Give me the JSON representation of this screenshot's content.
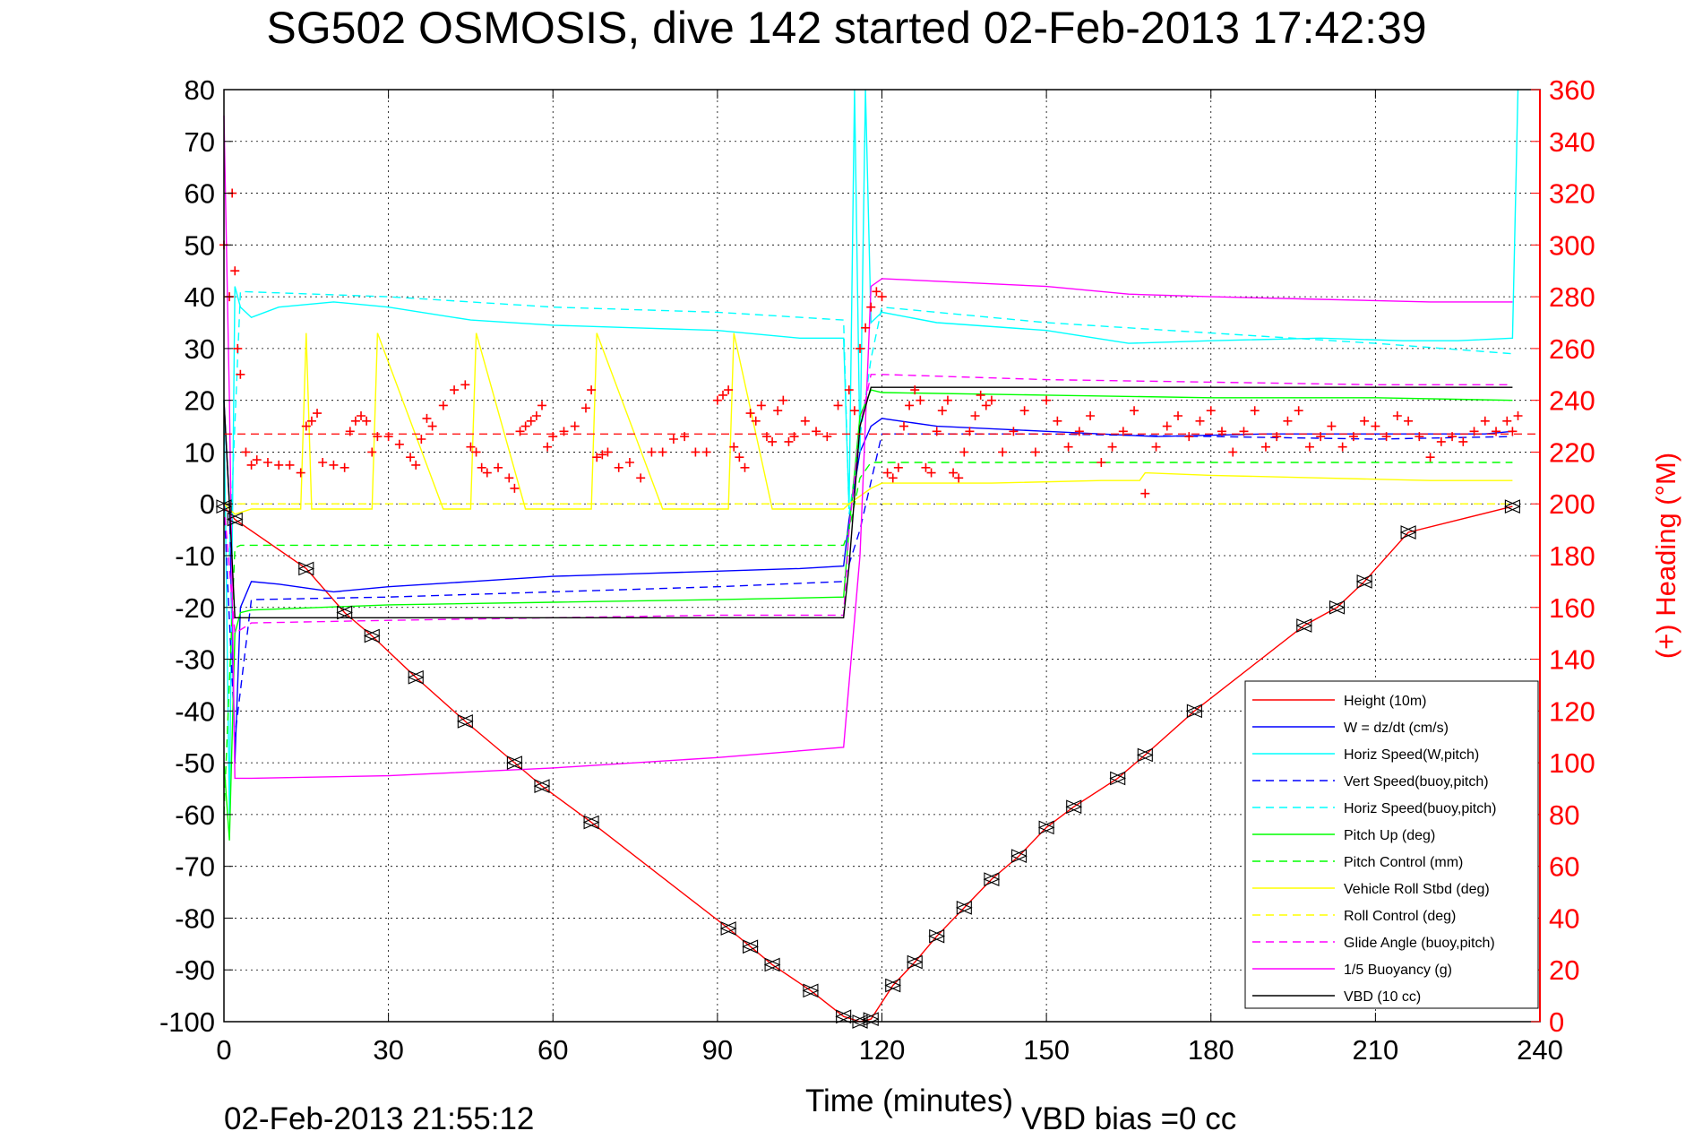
{
  "chart_data": {
    "type": "line",
    "title": "SG502 OSMOSIS, dive 142 started 02-Feb-2013 17:42:39",
    "xlabel": "Time (minutes)",
    "ylabel_right": "(+) Heading (°M)",
    "footer_left": "02-Feb-2013 21:55:12",
    "footer_right": "VBD bias =0 cc",
    "xlim": [
      0,
      240
    ],
    "ylim": [
      -100,
      80
    ],
    "y2lim": [
      0,
      360
    ],
    "x_ticks": [
      "0",
      "30",
      "60",
      "90",
      "120",
      "150",
      "180",
      "210",
      "240"
    ],
    "y_ticks": [
      "80",
      "70",
      "60",
      "50",
      "40",
      "30",
      "20",
      "10",
      "0",
      "-10",
      "-20",
      "-30",
      "-40",
      "-50",
      "-60",
      "-70",
      "-80",
      "-90",
      "-100"
    ],
    "y2_ticks": [
      "360",
      "340",
      "320",
      "300",
      "280",
      "260",
      "240",
      "220",
      "200",
      "180",
      "160",
      "140",
      "120",
      "100",
      "80",
      "60",
      "40",
      "20",
      "0"
    ],
    "grid": true,
    "legend_position": "bottom-right",
    "series": [
      {
        "name": "Height (10m)",
        "color": "#ff0000",
        "style": "solid",
        "x": [
          0,
          2,
          15,
          22,
          27,
          35,
          44,
          53,
          58,
          67,
          92,
          96,
          100,
          107,
          113,
          116,
          118,
          122,
          126,
          130,
          135,
          140,
          145,
          150,
          155,
          163,
          168,
          177,
          197,
          203,
          208,
          216,
          235
        ],
        "y": [
          -0.5,
          -3,
          -12.5,
          -21,
          -25.5,
          -33.5,
          -42,
          -50,
          -54.5,
          -61.5,
          -82,
          -85.5,
          -89,
          -94,
          -99,
          -100,
          -99.5,
          -93,
          -88.5,
          -83.5,
          -78,
          -72.5,
          -68,
          -62.5,
          -58.5,
          -53,
          -48.5,
          -40,
          -23.5,
          -20,
          -15,
          -5.5,
          -0.5
        ]
      },
      {
        "name": "W = dz/dt (cm/s)",
        "color": "#0000ff",
        "style": "solid",
        "x": [
          0,
          1,
          2,
          3,
          5,
          10,
          20,
          30,
          45,
          60,
          75,
          90,
          105,
          113,
          114,
          116,
          118,
          120,
          130,
          150,
          170,
          190,
          210,
          230,
          235
        ],
        "y": [
          20,
          0,
          -50,
          -20,
          -15,
          -15.5,
          -17,
          -16,
          -15,
          -14,
          -13.5,
          -13,
          -12.5,
          -12,
          -3,
          10,
          15,
          16.5,
          15,
          14,
          13,
          13.5,
          13.5,
          13.5,
          14
        ]
      },
      {
        "name": "Horiz Speed(W,pitch)",
        "color": "#00ffff",
        "style": "solid",
        "x": [
          0,
          1,
          2,
          3,
          5,
          10,
          20,
          30,
          45,
          60,
          75,
          90,
          105,
          113,
          114,
          115,
          116,
          117,
          118,
          120,
          130,
          150,
          165,
          180,
          200,
          215,
          225,
          235,
          236
        ],
        "y": [
          20,
          -60,
          42,
          38,
          36,
          38,
          39,
          38,
          35.5,
          34.5,
          34,
          33.5,
          32,
          32,
          -1,
          80,
          10,
          80,
          35,
          37,
          35,
          33.5,
          31,
          31.5,
          32,
          31.5,
          31.5,
          32,
          80
        ]
      },
      {
        "name": "Vert Speed(buoy,pitch)",
        "color": "#0000ff",
        "style": "dashed",
        "x": [
          0,
          2,
          5,
          30,
          60,
          90,
          113,
          116,
          120,
          150,
          180,
          210,
          235
        ],
        "y": [
          0,
          -45,
          -18.5,
          -18,
          -17,
          -16,
          -15,
          -5,
          13.5,
          13.5,
          13,
          12.5,
          13
        ]
      },
      {
        "name": "Horiz Speed(buoy,pitch)",
        "color": "#00ffff",
        "style": "dashed",
        "x": [
          1,
          3,
          30,
          60,
          90,
          113,
          114,
          118,
          120,
          150,
          180,
          210,
          235
        ],
        "y": [
          -10,
          41,
          40,
          38,
          37,
          35.5,
          -2,
          28,
          38,
          35,
          33,
          31,
          29
        ]
      },
      {
        "name": "Pitch Up (deg)",
        "color": "#00ff00",
        "style": "solid",
        "x": [
          0,
          1,
          2,
          3,
          5,
          30,
          60,
          90,
          113,
          114,
          116,
          118,
          120,
          150,
          180,
          210,
          235
        ],
        "y": [
          -50,
          -65,
          -25,
          -21,
          -20.5,
          -19.5,
          -19,
          -18.5,
          -18,
          -5,
          17,
          22,
          21.5,
          21,
          20.5,
          20.5,
          20
        ]
      },
      {
        "name": "Pitch Control (mm)",
        "color": "#00ff00",
        "style": "dashed",
        "x": [
          0,
          2,
          3,
          5,
          113,
          114,
          116,
          118,
          235
        ],
        "y": [
          -60,
          -8.5,
          -8,
          -8,
          -8,
          -5,
          5,
          8,
          8
        ]
      },
      {
        "name": "Vehicle Roll Stbd (deg)",
        "color": "#ffff00",
        "style": "solid",
        "x": [
          0,
          2,
          5,
          14,
          15,
          16,
          17,
          20,
          27,
          28,
          40,
          45,
          46,
          55,
          67,
          68,
          80,
          92,
          93,
          100,
          113,
          114,
          118,
          120,
          140,
          160,
          167,
          168,
          180,
          200,
          220,
          235
        ],
        "y": [
          0,
          -2,
          -1,
          -1,
          33,
          -1,
          -1,
          -1,
          -1,
          33,
          -1,
          -1,
          33,
          -1,
          -1,
          33,
          -1,
          -1,
          33,
          -1,
          -1,
          0,
          3,
          4,
          4,
          4.5,
          4.5,
          6,
          5.5,
          5,
          4.5,
          4.5
        ]
      },
      {
        "name": "Roll Control (deg)",
        "color": "#ffff00",
        "style": "dashed",
        "x": [
          0,
          5,
          113,
          114,
          118,
          120,
          235
        ],
        "y": [
          0,
          0,
          0,
          0,
          0,
          0,
          0
        ]
      },
      {
        "name": "Glide Angle (buoy,pitch)",
        "color": "#ff00ff",
        "style": "dashed",
        "x": [
          0,
          2,
          5,
          30,
          60,
          90,
          113,
          114,
          116,
          118,
          120,
          150,
          180,
          210,
          235
        ],
        "y": [
          0,
          -25,
          -23,
          -22.5,
          -22,
          -21.5,
          -21.5,
          -5,
          15,
          25,
          25,
          24,
          23.5,
          23,
          23
        ]
      },
      {
        "name": "1/5 Buoyancy (g)",
        "color": "#ff00ff",
        "style": "solid",
        "x": [
          0,
          1,
          2,
          5,
          30,
          60,
          90,
          113,
          116,
          118,
          120,
          150,
          165,
          180,
          200,
          220,
          235
        ],
        "y": [
          75,
          20,
          -53,
          -53,
          -52.5,
          -51,
          -49,
          -47,
          -10,
          42,
          43.5,
          42,
          40.5,
          40,
          39.5,
          39,
          39
        ]
      },
      {
        "name": "VBD (10 cc)",
        "color": "#000000",
        "style": "solid",
        "x": [
          0,
          1,
          2,
          3,
          5,
          113,
          114,
          116,
          118,
          120,
          235
        ],
        "y": [
          20,
          0,
          -22,
          -22,
          -22,
          -22,
          -12,
          15,
          22.5,
          22.5,
          22.5
        ]
      }
    ],
    "heading": {
      "name": "Heading",
      "color": "#ff0000",
      "marker": "+",
      "axis": "right",
      "mean": 227,
      "x": [
        0,
        1,
        1.5,
        2,
        2.5,
        3,
        4,
        5,
        6,
        8,
        10,
        12,
        14,
        15,
        16,
        17,
        18,
        20,
        22,
        23,
        24,
        25,
        26,
        27,
        28,
        30,
        32,
        34,
        35,
        36,
        37,
        38,
        40,
        42,
        44,
        45,
        46,
        47,
        48,
        50,
        52,
        53,
        54,
        55,
        56,
        57,
        58,
        59,
        60,
        62,
        64,
        66,
        67,
        68,
        69,
        70,
        72,
        74,
        76,
        78,
        80,
        82,
        84,
        86,
        88,
        90,
        91,
        92,
        93,
        94,
        95,
        96,
        97,
        98,
        99,
        100,
        101,
        102,
        103,
        104,
        106,
        108,
        110,
        112,
        114,
        115,
        116,
        117,
        118,
        119,
        120,
        121,
        122,
        123,
        124,
        125,
        126,
        127,
        128,
        129,
        130,
        131,
        132,
        133,
        134,
        135,
        136,
        137,
        138,
        139,
        140,
        142,
        144,
        146,
        148,
        150,
        152,
        154,
        156,
        158,
        160,
        162,
        164,
        166,
        168,
        170,
        172,
        174,
        176,
        178,
        180,
        182,
        184,
        186,
        188,
        190,
        192,
        194,
        196,
        198,
        200,
        202,
        204,
        206,
        208,
        210,
        212,
        214,
        216,
        218,
        220,
        222,
        224,
        226,
        228,
        230,
        232,
        234,
        235,
        236
      ],
      "y": [
        300,
        280,
        320,
        290,
        260,
        250,
        220,
        215,
        217,
        216,
        215,
        215,
        212,
        230,
        232,
        235,
        216,
        215,
        214,
        228,
        232,
        234,
        232,
        220,
        226,
        226,
        223,
        218,
        215,
        225,
        233,
        230,
        238,
        244,
        246,
        222,
        220,
        214,
        212,
        214,
        210,
        206,
        228,
        230,
        232,
        234,
        238,
        222,
        226,
        228,
        230,
        237,
        244,
        218,
        219,
        220,
        214,
        216,
        210,
        220,
        220,
        225,
        226,
        220,
        220,
        240,
        242,
        244,
        222,
        218,
        214,
        235,
        232,
        238,
        226,
        224,
        236,
        240,
        224,
        226,
        232,
        228,
        226,
        238,
        244,
        236,
        260,
        268,
        276,
        282,
        280,
        212,
        210,
        214,
        230,
        238,
        244,
        240,
        214,
        212,
        228,
        236,
        240,
        212,
        210,
        220,
        228,
        234,
        242,
        238,
        240,
        220,
        228,
        236,
        220,
        240,
        232,
        222,
        228,
        234,
        216,
        222,
        228,
        236,
        204,
        222,
        230,
        234,
        226,
        232,
        236,
        228,
        220,
        228,
        236,
        222,
        226,
        232,
        236,
        222,
        226,
        230,
        222,
        226,
        232,
        230,
        226,
        234,
        232,
        226,
        218,
        224,
        226,
        224,
        228,
        232,
        228,
        232,
        228,
        234
      ]
    }
  }
}
